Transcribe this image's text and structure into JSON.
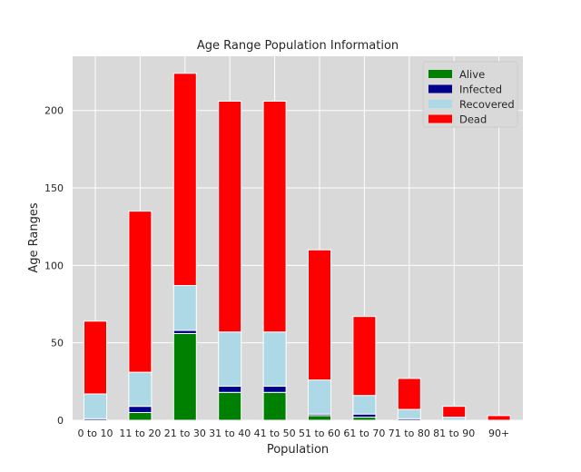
{
  "chart_data": {
    "type": "bar",
    "stacked": true,
    "title": "Age Range Population Information",
    "xlabel": "Population",
    "ylabel": "Age Ranges",
    "categories": [
      "0 to 10",
      "11 to 20",
      "21 to 30",
      "31 to 40",
      "41 to 50",
      "51 to 60",
      "61 to 70",
      "71 to 80",
      "81 to 90",
      "90+"
    ],
    "ylim": [
      0,
      235
    ],
    "yticks": [
      0,
      50,
      100,
      150,
      200
    ],
    "grid": true,
    "legend_position": "top-right",
    "series": [
      {
        "name": "Alive",
        "color": "#008000",
        "values": [
          0,
          5,
          56,
          18,
          18,
          3,
          2,
          0,
          0,
          0
        ]
      },
      {
        "name": "Infected",
        "color": "#00008b",
        "values": [
          1,
          4,
          2,
          4,
          4,
          1,
          2,
          1,
          0,
          0
        ]
      },
      {
        "name": "Recovered",
        "color": "#add8e6",
        "values": [
          16,
          22,
          29,
          35,
          35,
          22,
          12,
          6,
          2,
          0
        ]
      },
      {
        "name": "Dead",
        "color": "#ff0000",
        "values": [
          47,
          104,
          137,
          149,
          149,
          84,
          51,
          20,
          7,
          3
        ]
      }
    ]
  }
}
